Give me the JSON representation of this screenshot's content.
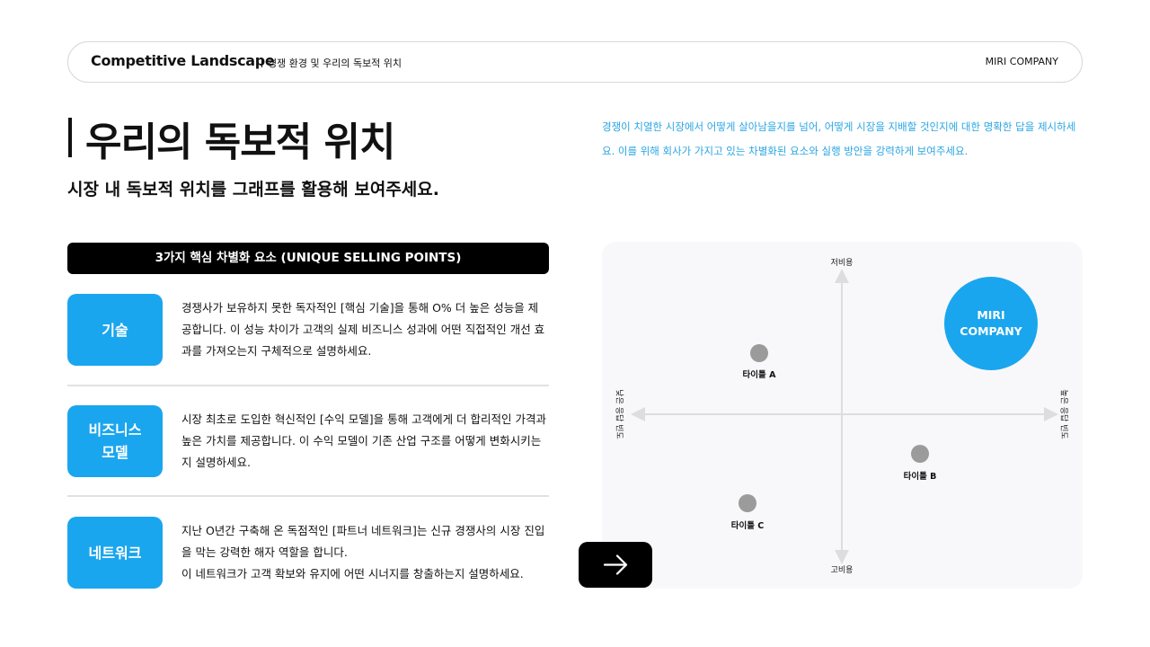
{
  "header": {
    "title": "Competitive Landscape",
    "subtitle": "경쟁 환경 및 우리의 독보적 위치",
    "brand": "MIRI COMPANY"
  },
  "heading": {
    "title": "우리의 독보적 위치",
    "subtitle": "시장 내 독보적 위치를 그래프를 활용해 보여주세요.",
    "description": "경쟁이 치열한 시장에서 어떻게 살아남을지를 넘어, 어떻게 시장을 지배할 것인지에 대한 명확한 답을 제시하세요. 이를 위해 회사가 가지고 있는 차별화된 요소와 실행 방안을 강력하게 보여주세요."
  },
  "usp": {
    "title": "3가지 핵심 차별화 요소 (UNIQUE SELLING POINTS)",
    "items": [
      {
        "label": "기술",
        "text": "경쟁사가 보유하지 못한 독자적인 [핵심 기술]을 통해 O% 더 높은 성능을 제공합니다. 이 성능 차이가 고객의 실제 비즈니스 성과에 어떤 직접적인 개선 효과를 가져오는지 구체적으로 설명하세요."
      },
      {
        "label": "비즈니스\n모델",
        "text": "시장 최초로 도입한 혁신적인 [수익 모델]을 통해 고객에게 더 합리적인 가격과 높은 가치를 제공합니다. 이 수익 모델이 기존 산업 구조를 어떻게 변화시키는지 설명하세요."
      },
      {
        "label": "네트워크",
        "text": "지난 O년간 구축해 온 독점적인 [파트너 네트워크]는 신규 경쟁사의 시장 진입을 막는 강력한 해자 역할을 합니다.\n이 네트워크가 고객 확보와 유지에 어떤 시너지를 창출하는지 설명하세요."
      }
    ]
  },
  "map": {
    "top": "저비용",
    "bottom": "고비용",
    "left": "낮은 응답 빈도",
    "right": "높은 응답 빈도",
    "company": "MIRI COMPANY",
    "points": [
      "타이틀 A",
      "타이틀 B",
      "타이틀 C"
    ]
  }
}
